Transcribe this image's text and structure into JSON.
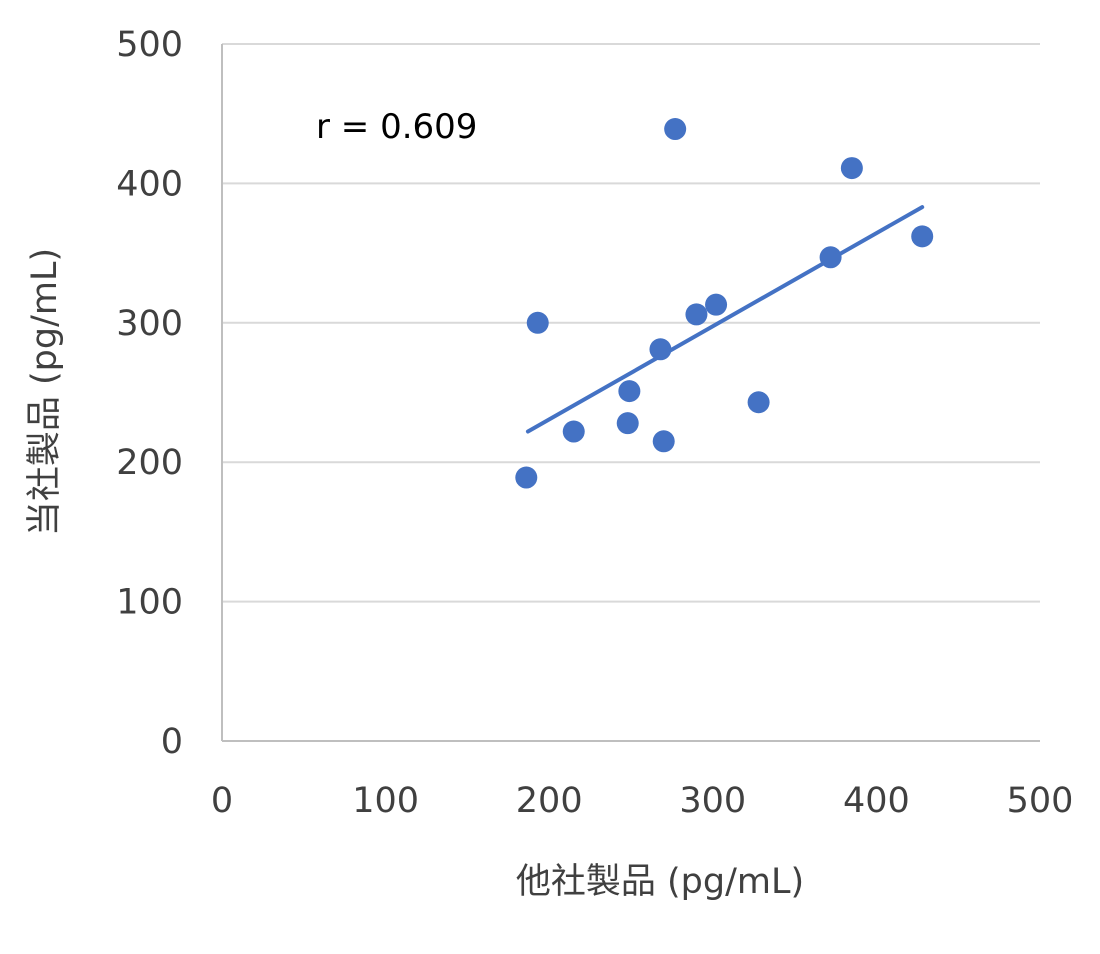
{
  "chart_data": {
    "type": "scatter",
    "xlabel": "他社製品 (pg/mL)",
    "ylabel": "当社製品 (pg/mL)",
    "xlim": [
      0,
      500
    ],
    "ylim": [
      0,
      500
    ],
    "x_ticks": [
      0,
      100,
      200,
      300,
      400,
      500
    ],
    "y_ticks": [
      0,
      100,
      200,
      300,
      400,
      500
    ],
    "grid": "horizontal",
    "legend": "none",
    "annotation": "r = 0.609",
    "points": [
      {
        "x": 186,
        "y": 189
      },
      {
        "x": 193,
        "y": 300
      },
      {
        "x": 215,
        "y": 222
      },
      {
        "x": 248,
        "y": 228
      },
      {
        "x": 249,
        "y": 251
      },
      {
        "x": 268,
        "y": 281
      },
      {
        "x": 270,
        "y": 215
      },
      {
        "x": 277,
        "y": 439
      },
      {
        "x": 290,
        "y": 306
      },
      {
        "x": 302,
        "y": 313
      },
      {
        "x": 328,
        "y": 243
      },
      {
        "x": 372,
        "y": 347
      },
      {
        "x": 385,
        "y": 411
      },
      {
        "x": 428,
        "y": 362
      }
    ],
    "trendline": {
      "x": [
        187,
        428
      ],
      "y": [
        222,
        383
      ]
    },
    "colors": {
      "marker": "#4472c4",
      "trendline": "#4472c4",
      "grid": "#d9d9d9",
      "axis": "#bfbfbf"
    }
  }
}
